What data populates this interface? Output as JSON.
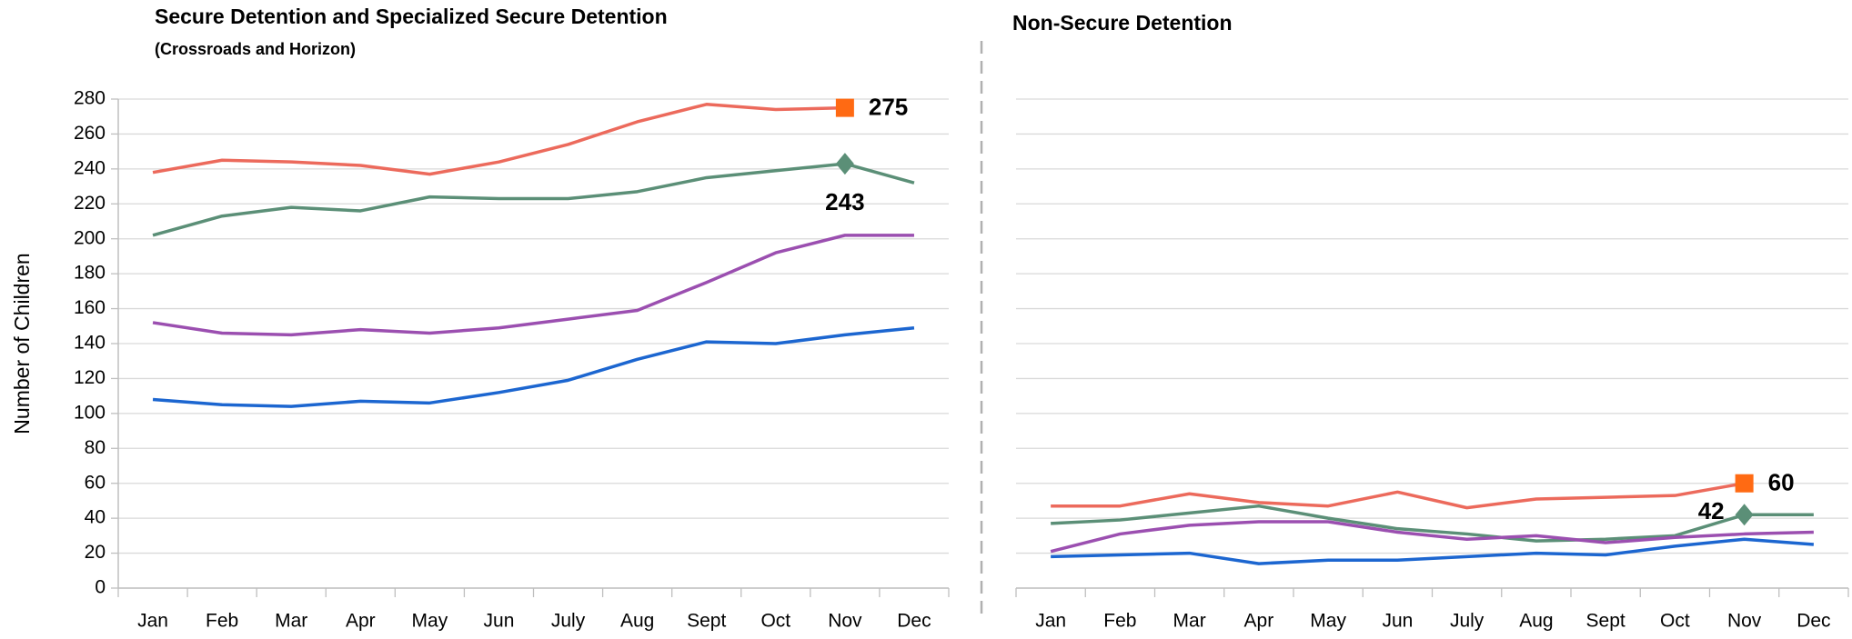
{
  "chart_data": [
    {
      "type": "line",
      "title": "Secure Detention and Specialized Secure Detention",
      "subtitle": "(Crossroads and Horizon)",
      "ylabel": "Number of Children",
      "categories": [
        "Jan",
        "Feb",
        "Mar",
        "Apr",
        "May",
        "Jun",
        "July",
        "Aug",
        "Sept",
        "Oct",
        "Nov",
        "Dec"
      ],
      "series": [
        {
          "color": "#ec6a5c",
          "values": [
            238,
            245,
            244,
            242,
            237,
            244,
            254,
            267,
            277,
            274,
            275,
            null
          ],
          "marker": "square",
          "marker_color": "#ff6a13",
          "marker_at": 10,
          "label_position": "right"
        },
        {
          "color": "#5b8f77",
          "values": [
            202,
            213,
            218,
            216,
            224,
            223,
            223,
            227,
            235,
            239,
            243,
            232
          ],
          "marker": "diamond",
          "marker_color": "#5b8f77",
          "marker_at": 10,
          "label_position": "below"
        },
        {
          "color": "#9b4fb0",
          "values": [
            152,
            146,
            145,
            148,
            146,
            149,
            154,
            159,
            175,
            192,
            202,
            202
          ]
        },
        {
          "color": "#1c66d0",
          "values": [
            108,
            105,
            104,
            107,
            106,
            112,
            119,
            131,
            141,
            140,
            145,
            149
          ]
        }
      ],
      "ylim": [
        0,
        280
      ],
      "yticks": [
        0,
        20,
        40,
        60,
        80,
        100,
        120,
        140,
        160,
        180,
        200,
        220,
        240,
        260,
        280
      ],
      "grid": true
    },
    {
      "type": "line",
      "title": "Non-Secure Detention",
      "categories": [
        "Jan",
        "Feb",
        "Mar",
        "Apr",
        "May",
        "Jun",
        "July",
        "Aug",
        "Sept",
        "Oct",
        "Nov",
        "Dec"
      ],
      "series": [
        {
          "color": "#ec6a5c",
          "values": [
            47,
            47,
            54,
            49,
            47,
            55,
            46,
            51,
            52,
            53,
            60,
            null
          ],
          "marker": "square",
          "marker_color": "#ff6a13",
          "marker_at": 10,
          "label_position": "right"
        },
        {
          "color": "#5b8f77",
          "values": [
            37,
            39,
            43,
            47,
            40,
            34,
            31,
            27,
            28,
            30,
            42,
            42
          ],
          "marker": "diamond",
          "marker_color": "#5b8f77",
          "marker_at": 10,
          "label_position": "left"
        },
        {
          "color": "#9b4fb0",
          "values": [
            21,
            31,
            36,
            38,
            38,
            32,
            28,
            30,
            26,
            29,
            31,
            32
          ]
        },
        {
          "color": "#1c66d0",
          "values": [
            18,
            19,
            20,
            14,
            16,
            16,
            18,
            20,
            19,
            24,
            28,
            25
          ]
        }
      ],
      "ylim": [
        0,
        280
      ],
      "yticks": [
        0,
        20,
        40,
        60,
        80,
        100,
        120,
        140,
        160,
        180,
        200,
        220,
        240,
        260,
        280
      ],
      "grid": true
    }
  ]
}
